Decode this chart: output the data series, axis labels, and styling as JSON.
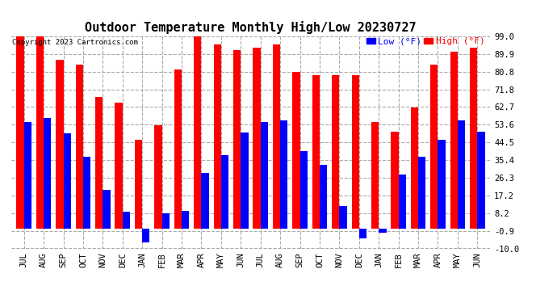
{
  "title": "Outdoor Temperature Monthly High/Low 20230727",
  "copyright": "Copyright 2023 Cartronics.com",
  "legend_low": "Low (°F)",
  "legend_high": "High (°F)",
  "categories": [
    "JUL",
    "AUG",
    "SEP",
    "OCT",
    "NOV",
    "DEC",
    "JAN",
    "FEB",
    "MAR",
    "APR",
    "MAY",
    "JUN",
    "JUL",
    "AUG",
    "SEP",
    "OCT",
    "NOV",
    "DEC",
    "JAN",
    "FEB",
    "MAR",
    "APR",
    "MAY",
    "JUN"
  ],
  "high_values": [
    99.0,
    99.0,
    87.0,
    84.5,
    68.0,
    65.0,
    46.0,
    53.5,
    82.0,
    99.0,
    95.0,
    92.0,
    93.0,
    95.0,
    80.8,
    79.0,
    79.0,
    79.0,
    55.0,
    50.0,
    62.5,
    84.5,
    91.0,
    93.0
  ],
  "low_values": [
    55.0,
    57.0,
    49.0,
    37.0,
    20.0,
    9.0,
    -7.0,
    8.0,
    9.5,
    29.0,
    38.0,
    49.5,
    55.0,
    56.0,
    40.0,
    33.0,
    12.0,
    -5.0,
    -2.0,
    28.0,
    37.0,
    46.0,
    56.0,
    50.0
  ],
  "ylim": [
    -10.0,
    99.0
  ],
  "yticks": [
    -10.0,
    -0.9,
    8.2,
    17.2,
    26.3,
    35.4,
    44.5,
    53.6,
    62.7,
    71.8,
    80.8,
    89.9,
    99.0
  ],
  "bar_width": 0.38,
  "high_color": "#ff0000",
  "low_color": "#0000ff",
  "bg_color": "#ffffff",
  "grid_color": "#aaaaaa",
  "title_color": "#000000",
  "copyright_color": "#000000",
  "legend_low_color": "#0000ff",
  "legend_high_color": "#ff0000",
  "figwidth": 6.9,
  "figheight": 3.75,
  "dpi": 100
}
